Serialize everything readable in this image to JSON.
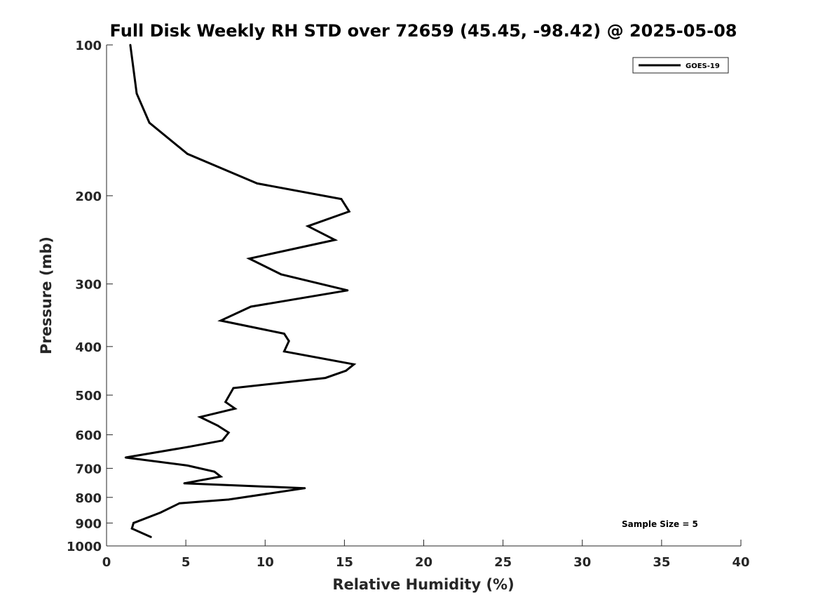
{
  "chart_data": {
    "type": "line",
    "title": "Full Disk Weekly RH STD over 72659 (45.45, -98.42) @ 2025-05-08",
    "xlabel": "Relative Humidity (%)",
    "ylabel": "Pressure (mb)",
    "xlim": [
      0,
      40
    ],
    "ylim": [
      100,
      1000
    ],
    "y_scale": "log",
    "y_direction": "reversed",
    "grid": false,
    "legend_position": "top-right",
    "x_ticks": [
      0,
      5,
      10,
      15,
      20,
      25,
      30,
      35,
      40
    ],
    "x_tick_labels": [
      "0",
      "5",
      "10",
      "15",
      "20",
      "25",
      "30",
      "35",
      "40"
    ],
    "y_ticks": [
      100,
      200,
      300,
      400,
      500,
      600,
      700,
      800,
      900,
      1000
    ],
    "y_tick_labels": [
      "100",
      "200",
      "300",
      "400",
      "500",
      "600",
      "700",
      "800",
      "900",
      "1000"
    ],
    "series": [
      {
        "name": "GOES-19",
        "color": "#000000",
        "points": [
          [
            1.5,
            100
          ],
          [
            1.9,
            125
          ],
          [
            2.7,
            143
          ],
          [
            5.1,
            165
          ],
          [
            9.5,
            189
          ],
          [
            14.8,
            203
          ],
          [
            15.3,
            215
          ],
          [
            12.7,
            230
          ],
          [
            14.4,
            245
          ],
          [
            9.0,
            267
          ],
          [
            11.0,
            287
          ],
          [
            15.2,
            309
          ],
          [
            9.1,
            333
          ],
          [
            7.2,
            355
          ],
          [
            11.2,
            377
          ],
          [
            11.5,
            390
          ],
          [
            11.2,
            409
          ],
          [
            15.6,
            434
          ],
          [
            15.1,
            447
          ],
          [
            13.8,
            462
          ],
          [
            8.0,
            484
          ],
          [
            7.5,
            516
          ],
          [
            8.1,
            532
          ],
          [
            5.9,
            553
          ],
          [
            7.0,
            575
          ],
          [
            7.7,
            594
          ],
          [
            7.3,
            616
          ],
          [
            5.2,
            634
          ],
          [
            1.2,
            666
          ],
          [
            5.1,
            691
          ],
          [
            6.8,
            711
          ],
          [
            7.2,
            727
          ],
          [
            4.9,
            750
          ],
          [
            12.5,
            767
          ],
          [
            7.7,
            808
          ],
          [
            4.6,
            822
          ],
          [
            3.4,
            858
          ],
          [
            1.7,
            900
          ],
          [
            1.6,
            923
          ],
          [
            2.8,
            960
          ]
        ]
      }
    ],
    "annotations": [
      "Sample Size = 5"
    ]
  }
}
